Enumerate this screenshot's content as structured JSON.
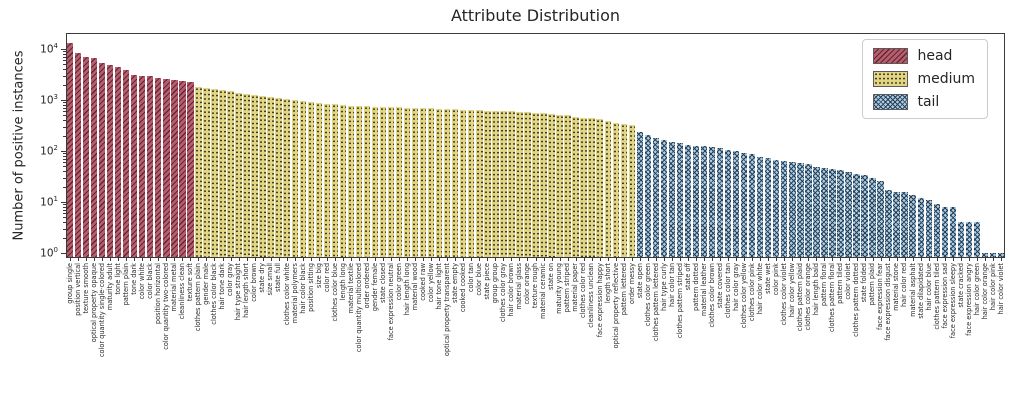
{
  "title": "Attribute Distribution",
  "ylabel": "Number of positive instances",
  "xlabel": "",
  "legend": [
    {
      "label": "head",
      "color": "#b85d6d",
      "hatch": "diagonal-lines"
    },
    {
      "label": "medium",
      "color": "#e2d583",
      "hatch": "dots"
    },
    {
      "label": "tail",
      "color": "#a7cde8",
      "hatch": "cross-x"
    }
  ],
  "chart_data": {
    "type": "bar",
    "title": "Attribute Distribution",
    "ylabel": "Number of positive instances",
    "xlabel": "",
    "yscale": "log",
    "ylim": [
      0.8,
      25000
    ],
    "ytick_exponents": [
      0,
      1,
      2,
      3,
      4
    ],
    "grid": false,
    "legend_position": "upper right",
    "series": [
      {
        "name": "head",
        "color": "#b85d6d",
        "hatch": "//",
        "items": [
          [
            "group single",
            13000
          ],
          [
            "position vertical",
            8300
          ],
          [
            "texture smooth",
            6900
          ],
          [
            "optical property opaque",
            6700
          ],
          [
            "color quantity single-colored",
            5400
          ],
          [
            "maturity adult",
            4900
          ],
          [
            "tone light",
            4400
          ],
          [
            "pattern plain",
            3900
          ],
          [
            "tone dark",
            3100
          ],
          [
            "color white",
            2950
          ],
          [
            "color black",
            2900
          ],
          [
            "position horizontal",
            2700
          ],
          [
            "color quantity two-colored",
            2550
          ],
          [
            "material metal",
            2500
          ],
          [
            "cleanliness clean",
            2400
          ],
          [
            "texture soft",
            2300
          ]
        ]
      },
      {
        "name": "medium",
        "color": "#e2d583",
        "hatch": "..",
        "items": [
          [
            "clothes pattern plain",
            1820
          ],
          [
            "gender male",
            1700
          ],
          [
            "clothes color black",
            1620
          ],
          [
            "hair tone dark",
            1560
          ],
          [
            "color gray",
            1480
          ],
          [
            "hair type straight",
            1360
          ],
          [
            "hair length short",
            1300
          ],
          [
            "color brown",
            1250
          ],
          [
            "state dry",
            1210
          ],
          [
            "size small",
            1150
          ],
          [
            "state full",
            1080
          ],
          [
            "clothes color white",
            1030
          ],
          [
            "material polymers",
            990
          ],
          [
            "hair color black",
            950
          ],
          [
            "position sitting",
            900
          ],
          [
            "size big",
            860
          ],
          [
            "color red",
            840
          ],
          [
            "clothes color blue",
            820
          ],
          [
            "length long",
            800
          ],
          [
            "material textile",
            780
          ],
          [
            "color quantity multicolored",
            760
          ],
          [
            "order ordered",
            750
          ],
          [
            "gender female",
            740
          ],
          [
            "state closed",
            730
          ],
          [
            "face expression neutral",
            725
          ],
          [
            "color green",
            720
          ],
          [
            "hair length long",
            710
          ],
          [
            "material wood",
            700
          ],
          [
            "cooked raw",
            695
          ],
          [
            "color yellow",
            690
          ],
          [
            "hair tone light",
            680
          ],
          [
            "optical property transparent",
            670
          ],
          [
            "state empty",
            660
          ],
          [
            "cooked cooked",
            650
          ],
          [
            "color tan",
            640
          ],
          [
            "color blue",
            630
          ],
          [
            "state piece",
            620
          ],
          [
            "group group",
            615
          ],
          [
            "clothes color gray",
            610
          ],
          [
            "hair color brown",
            600
          ],
          [
            "material glass",
            590
          ],
          [
            "color orange",
            575
          ],
          [
            "texture rough",
            560
          ],
          [
            "material ceramic",
            550
          ],
          [
            "state on",
            535
          ],
          [
            "maturity young",
            515
          ],
          [
            "pattern striped",
            500
          ],
          [
            "material paper",
            475
          ],
          [
            "clothes color red",
            450
          ],
          [
            "cleanliness unclean",
            435
          ],
          [
            "face expression happy",
            420
          ],
          [
            "length short",
            390
          ],
          [
            "optical property reflective",
            360
          ],
          [
            "pattern lettered",
            340
          ],
          [
            "order messy",
            320
          ]
        ]
      },
      {
        "name": "tail",
        "color": "#a7cde8",
        "hatch": "xx",
        "items": [
          [
            "state open",
            235
          ],
          [
            "clothes color green",
            205
          ],
          [
            "clothes pattern lettered",
            180
          ],
          [
            "hair type curly",
            165
          ],
          [
            "hair color tan",
            152
          ],
          [
            "clothes pattern striped",
            145
          ],
          [
            "state off",
            132
          ],
          [
            "pattern dotted",
            128
          ],
          [
            "material leather",
            123
          ],
          [
            "clothes color brown",
            120
          ],
          [
            "state covered",
            115
          ],
          [
            "clothes color tan",
            105
          ],
          [
            "hair color gray",
            100
          ],
          [
            "clothes color yellow",
            92
          ],
          [
            "clothes color pink",
            88
          ],
          [
            "hair color white",
            76
          ],
          [
            "state wet",
            73
          ],
          [
            "color pink",
            66
          ],
          [
            "clothes color violet",
            63
          ],
          [
            "hair color yellow",
            60
          ],
          [
            "clothes pattern plaid",
            58
          ],
          [
            "clothes color orange",
            55
          ],
          [
            "hair length bald",
            48
          ],
          [
            "pattern floral",
            46
          ],
          [
            "clothes pattern floral",
            45
          ],
          [
            "pattern tiled",
            43
          ],
          [
            "color violet",
            38
          ],
          [
            "clothes pattern dotted",
            36
          ],
          [
            "state folded",
            34
          ],
          [
            "pattern plaid",
            30
          ],
          [
            "face expression fear",
            26
          ],
          [
            "face expression disgust",
            17
          ],
          [
            "material stone",
            16
          ],
          [
            "hair color red",
            16
          ],
          [
            "material asphalt",
            14
          ],
          [
            "state dilapidated",
            12
          ],
          [
            "hair color blue",
            11
          ],
          [
            "clothes pattern tiled",
            9
          ],
          [
            "face expression sad",
            8
          ],
          [
            "face expression sleepy",
            8
          ],
          [
            "state cracked",
            4
          ],
          [
            "face expression angry",
            4
          ],
          [
            "hair color green",
            4
          ],
          [
            "hair color orange",
            1
          ],
          [
            "hair color pink",
            1
          ],
          [
            "hair color violet",
            1
          ]
        ]
      }
    ]
  }
}
